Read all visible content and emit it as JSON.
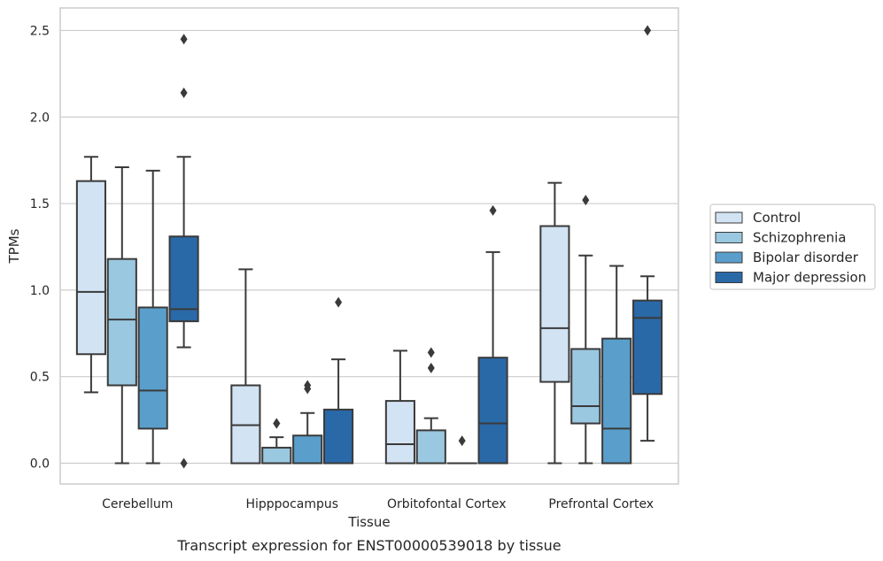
{
  "chart_data": {
    "type": "boxplot",
    "title": "",
    "caption": "Transcript expression for ENST00000539018 by tissue",
    "xlabel": "Tissue",
    "ylabel": "TPMs",
    "ylim": [
      -0.12,
      2.63
    ],
    "yticks": [
      0.0,
      0.5,
      1.0,
      1.5,
      2.0,
      2.5
    ],
    "ytick_labels": [
      "0.0",
      "0.5",
      "1.0",
      "1.5",
      "2.0",
      "2.5"
    ],
    "grid": "horizontal",
    "legend_position": "right",
    "categories": [
      "Cerebellum",
      "Hipppocampus",
      "Orbitofontal Cortex",
      "Prefrontal Cortex"
    ],
    "series": [
      {
        "name": "Control",
        "color": "#d2e3f3",
        "boxes": [
          {
            "whislo": 0.41,
            "q1": 0.63,
            "med": 0.99,
            "q3": 1.63,
            "whishi": 1.77,
            "fliers": []
          },
          {
            "whislo": 0.0,
            "q1": 0.0,
            "med": 0.22,
            "q3": 0.45,
            "whishi": 1.12,
            "fliers": []
          },
          {
            "whislo": 0.0,
            "q1": 0.0,
            "med": 0.11,
            "q3": 0.36,
            "whishi": 0.65,
            "fliers": []
          },
          {
            "whislo": 0.0,
            "q1": 0.47,
            "med": 0.78,
            "q3": 1.37,
            "whishi": 1.62,
            "fliers": []
          }
        ]
      },
      {
        "name": "Schizophrenia",
        "color": "#9ac8e0",
        "boxes": [
          {
            "whislo": 0.0,
            "q1": 0.45,
            "med": 0.83,
            "q3": 1.18,
            "whishi": 1.71,
            "fliers": []
          },
          {
            "whislo": 0.0,
            "q1": 0.0,
            "med": 0.0,
            "q3": 0.09,
            "whishi": 0.15,
            "fliers": [
              0.23,
              0.23
            ]
          },
          {
            "whislo": 0.0,
            "q1": 0.0,
            "med": 0.0,
            "q3": 0.19,
            "whishi": 0.26,
            "fliers": [
              0.55,
              0.64
            ]
          },
          {
            "whislo": 0.0,
            "q1": 0.23,
            "med": 0.33,
            "q3": 0.66,
            "whishi": 1.2,
            "fliers": [
              1.52
            ]
          }
        ]
      },
      {
        "name": "Bipolar disorder",
        "color": "#5a9fcb",
        "boxes": [
          {
            "whislo": 0.0,
            "q1": 0.2,
            "med": 0.42,
            "q3": 0.9,
            "whishi": 1.69,
            "fliers": []
          },
          {
            "whislo": 0.0,
            "q1": 0.0,
            "med": 0.0,
            "q3": 0.16,
            "whishi": 0.29,
            "fliers": [
              0.43,
              0.45
            ]
          },
          {
            "whislo": 0.0,
            "q1": 0.0,
            "med": 0.0,
            "q3": 0.0,
            "whishi": 0.0,
            "fliers": [
              0.13
            ]
          },
          {
            "whislo": 0.0,
            "q1": 0.0,
            "med": 0.2,
            "q3": 0.72,
            "whishi": 1.14,
            "fliers": []
          }
        ]
      },
      {
        "name": "Major depression",
        "color": "#2a69a8",
        "boxes": [
          {
            "whislo": 0.67,
            "q1": 0.82,
            "med": 0.89,
            "q3": 1.31,
            "whishi": 1.77,
            "fliers": [
              0.0,
              2.14,
              2.45
            ]
          },
          {
            "whislo": 0.0,
            "q1": 0.0,
            "med": 0.0,
            "q3": 0.31,
            "whishi": 0.6,
            "fliers": [
              0.93
            ]
          },
          {
            "whislo": 0.0,
            "q1": 0.0,
            "med": 0.23,
            "q3": 0.61,
            "whishi": 1.22,
            "fliers": [
              1.46
            ]
          },
          {
            "whislo": 0.13,
            "q1": 0.4,
            "med": 0.84,
            "q3": 0.94,
            "whishi": 1.08,
            "fliers": [
              2.5
            ]
          }
        ]
      }
    ],
    "style": {
      "box_edge_color": "#3a3a3a",
      "grid_color": "#cccccc",
      "frame_color": "#cccccc",
      "background": "#ffffff"
    }
  }
}
